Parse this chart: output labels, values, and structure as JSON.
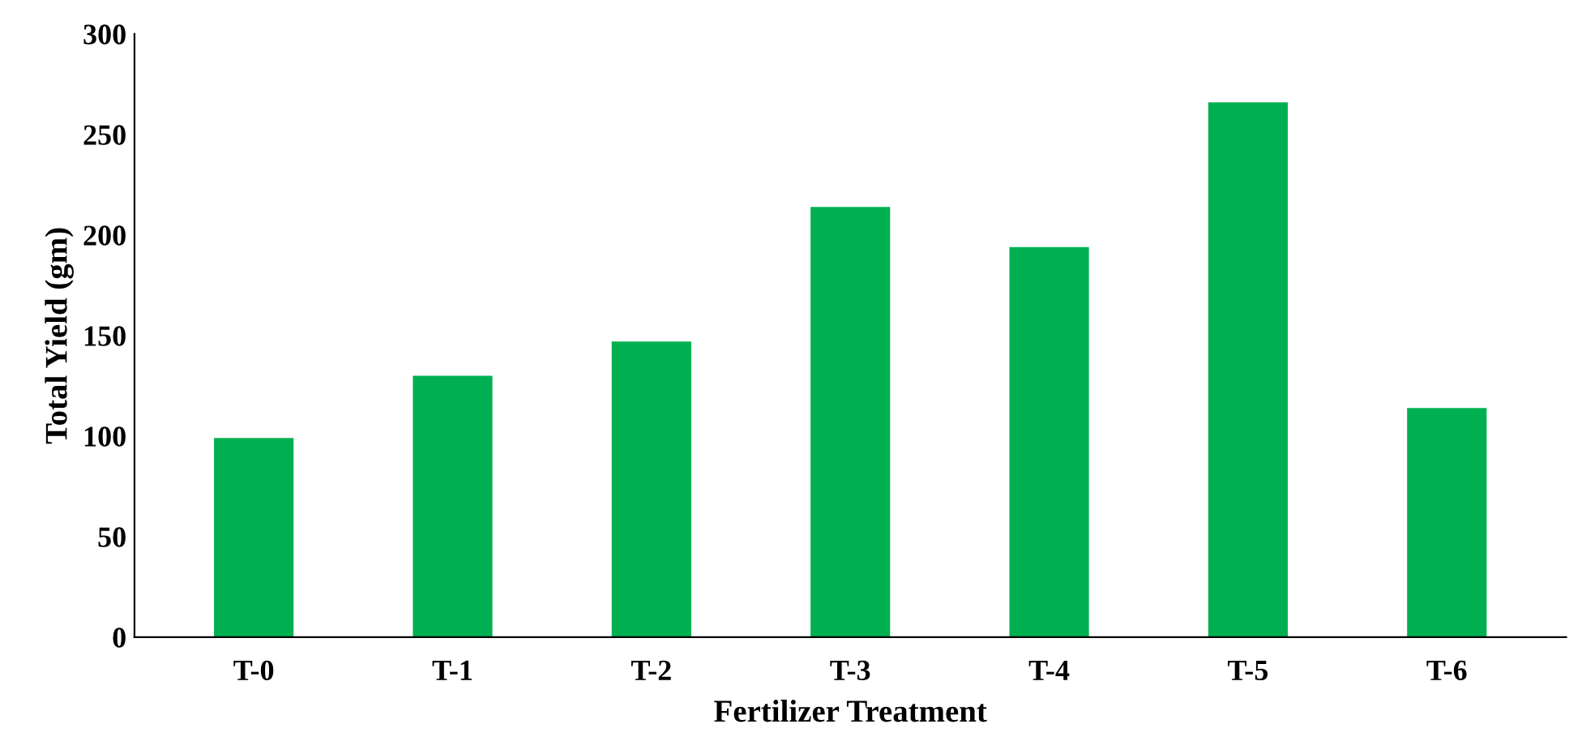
{
  "chart_data": {
    "type": "bar",
    "xlabel": "Fertilizer Treatment",
    "ylabel": "Total Yield (gm)",
    "categories": [
      "T-0",
      "T-1",
      "T-2",
      "T-3",
      "T-4",
      "T-5",
      "T-6"
    ],
    "values": [
      99,
      130,
      147,
      214,
      194,
      266,
      114
    ],
    "color": "#00b050",
    "ylim": [
      0,
      300
    ],
    "yticks": [
      0,
      50,
      100,
      150,
      200,
      250,
      300
    ],
    "grid": false,
    "legend": false
  }
}
